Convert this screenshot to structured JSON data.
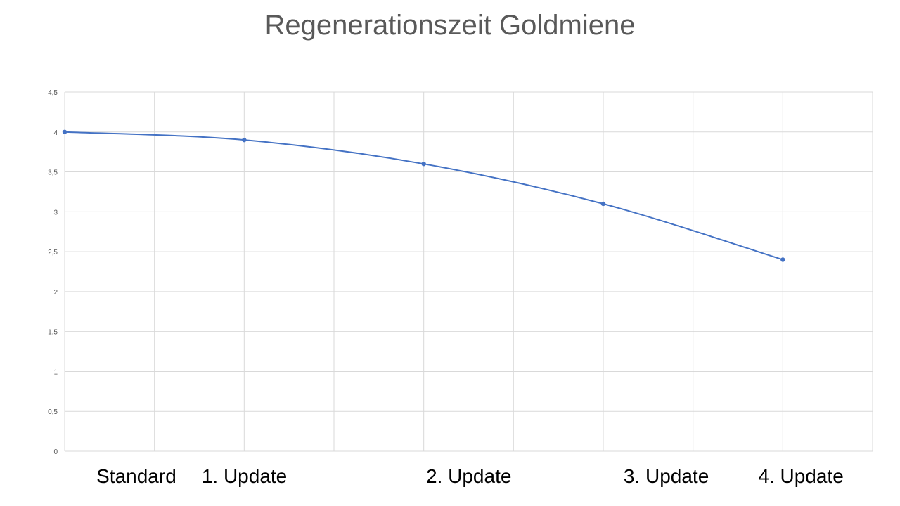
{
  "chart_data": {
    "type": "line",
    "title": "Regenerationszeit Goldmiene",
    "xlabel": "",
    "ylabel": "",
    "ylim": [
      0,
      4.5
    ],
    "yticks": [
      "0",
      "0,5",
      "1",
      "1,5",
      "2",
      "2,5",
      "3",
      "3,5",
      "4",
      "4,5"
    ],
    "grid": true,
    "smoothed": true,
    "series": [
      {
        "color": "#4472C4",
        "points": [
          {
            "x": 0,
            "y": 4.0
          },
          {
            "x": 2,
            "y": 3.9
          },
          {
            "x": 4,
            "y": 3.6
          },
          {
            "x": 6,
            "y": 3.1
          },
          {
            "x": 8,
            "y": 2.4
          }
        ]
      }
    ],
    "xlim": [
      0,
      9
    ],
    "category_labels": [
      {
        "label": "Standard",
        "x": 0.8
      },
      {
        "label": "1. Update",
        "x": 2
      },
      {
        "label": "2. Update",
        "x": 4.5
      },
      {
        "label": "3. Update",
        "x": 6.7
      },
      {
        "label": "4. Update",
        "x": 8.2
      }
    ]
  }
}
